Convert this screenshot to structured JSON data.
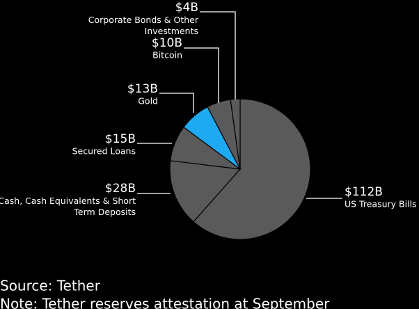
{
  "chart_data": {
    "type": "pie",
    "categories": [
      "US Treasury Bills",
      "Cash, Cash Equivalents & Short\nTerm Deposits",
      "Secured Loans",
      "Gold",
      "Bitcoin",
      "Corporate Bonds & Other\nInvestments"
    ],
    "values": [
      112,
      28,
      15,
      13,
      10,
      4
    ],
    "value_labels": [
      "$112B",
      "$28B",
      "$15B",
      "$13B",
      "$10B",
      "$4B"
    ],
    "colors": [
      "#5a5a5a",
      "#5a5a5a",
      "#5a5a5a",
      "#1eaaf1",
      "#5a5a5a",
      "#5a5a5a"
    ],
    "source": "Source: Tether",
    "note": "Note: Tether reserves attestation at September"
  }
}
